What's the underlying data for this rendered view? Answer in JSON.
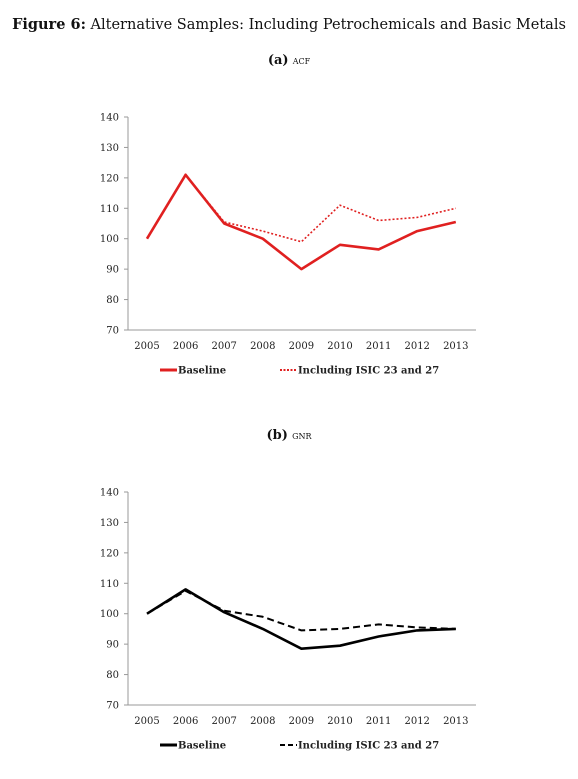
{
  "figure": {
    "label": "Figure 6:",
    "title": "Alternative Samples: Including Petrochemicals and Basic Metals"
  },
  "chart_data": [
    {
      "type": "line",
      "panel_label": "(a)",
      "panel_name": "ACF",
      "x": [
        "2005",
        "2006",
        "2007",
        "2008",
        "2009",
        "2010",
        "2011",
        "2012",
        "2013"
      ],
      "yticks": [
        70,
        80,
        90,
        100,
        110,
        120,
        130,
        140
      ],
      "ylim": [
        70,
        140
      ],
      "legend_position": "bottom",
      "series": [
        {
          "name": "Baseline",
          "style": "solid",
          "color": "#e02020",
          "values": [
            100,
            121,
            105,
            100,
            90,
            98,
            96.5,
            102.5,
            105.5
          ]
        },
        {
          "name": "Including ISIC 23 and 27",
          "style": "dotted",
          "color": "#e02020",
          "values": [
            100,
            121,
            105.5,
            102.5,
            99,
            111,
            106,
            107,
            110
          ]
        }
      ]
    },
    {
      "type": "line",
      "panel_label": "(b)",
      "panel_name": "GNR",
      "x": [
        "2005",
        "2006",
        "2007",
        "2008",
        "2009",
        "2010",
        "2011",
        "2012",
        "2013"
      ],
      "yticks": [
        70,
        80,
        90,
        100,
        110,
        120,
        130,
        140
      ],
      "ylim": [
        70,
        140
      ],
      "legend_position": "bottom",
      "series": [
        {
          "name": "Baseline",
          "style": "solid",
          "color": "#000000",
          "values": [
            100,
            108,
            100.5,
            95,
            88.5,
            89.5,
            92.5,
            94.5,
            95
          ]
        },
        {
          "name": "Including ISIC 23 and 27",
          "style": "dashed",
          "color": "#000000",
          "values": [
            100,
            107.5,
            101,
            99,
            94.5,
            95,
            96.5,
            95.5,
            95
          ]
        }
      ]
    }
  ]
}
